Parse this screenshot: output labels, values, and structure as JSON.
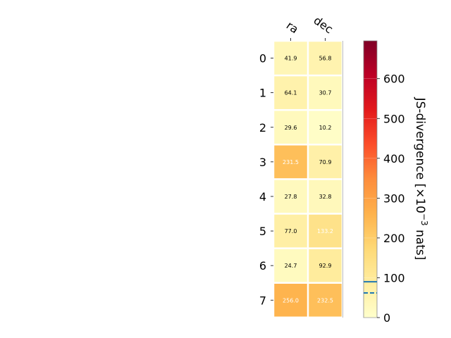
{
  "chart_data": {
    "type": "heatmap",
    "columns": [
      "ra",
      "dec"
    ],
    "rows": [
      "0",
      "1",
      "2",
      "3",
      "4",
      "5",
      "6",
      "7"
    ],
    "values": [
      [
        41.9,
        56.8
      ],
      [
        64.1,
        30.7
      ],
      [
        29.6,
        10.2
      ],
      [
        231.5,
        70.9
      ],
      [
        27.8,
        32.8
      ],
      [
        77.0,
        133.2
      ],
      [
        24.7,
        92.9
      ],
      [
        256.0,
        232.5
      ]
    ],
    "cell_labels": [
      [
        "41.9",
        "56.8"
      ],
      [
        "64.1",
        "30.7"
      ],
      [
        "29.6",
        "10.2"
      ],
      [
        "231.5",
        "70.9"
      ],
      [
        "27.8",
        "32.8"
      ],
      [
        "77.0",
        "133.2"
      ],
      [
        "24.7",
        "92.9"
      ],
      [
        "256.0",
        "232.5"
      ]
    ],
    "colormap": "YlOrRd",
    "colorbar": {
      "label_main": "JS-divergence [×10",
      "label_exp": "−3",
      "label_tail": " nats]",
      "vmin": 0,
      "vmax": 695,
      "ticks": [
        0,
        100,
        200,
        300,
        400,
        500,
        600
      ],
      "tick_labels": [
        "0",
        "100",
        "200",
        "300",
        "400",
        "500",
        "600"
      ],
      "solid_line_value": 90,
      "dashed_line_value": 62,
      "line_color": "#1f77b4"
    }
  }
}
